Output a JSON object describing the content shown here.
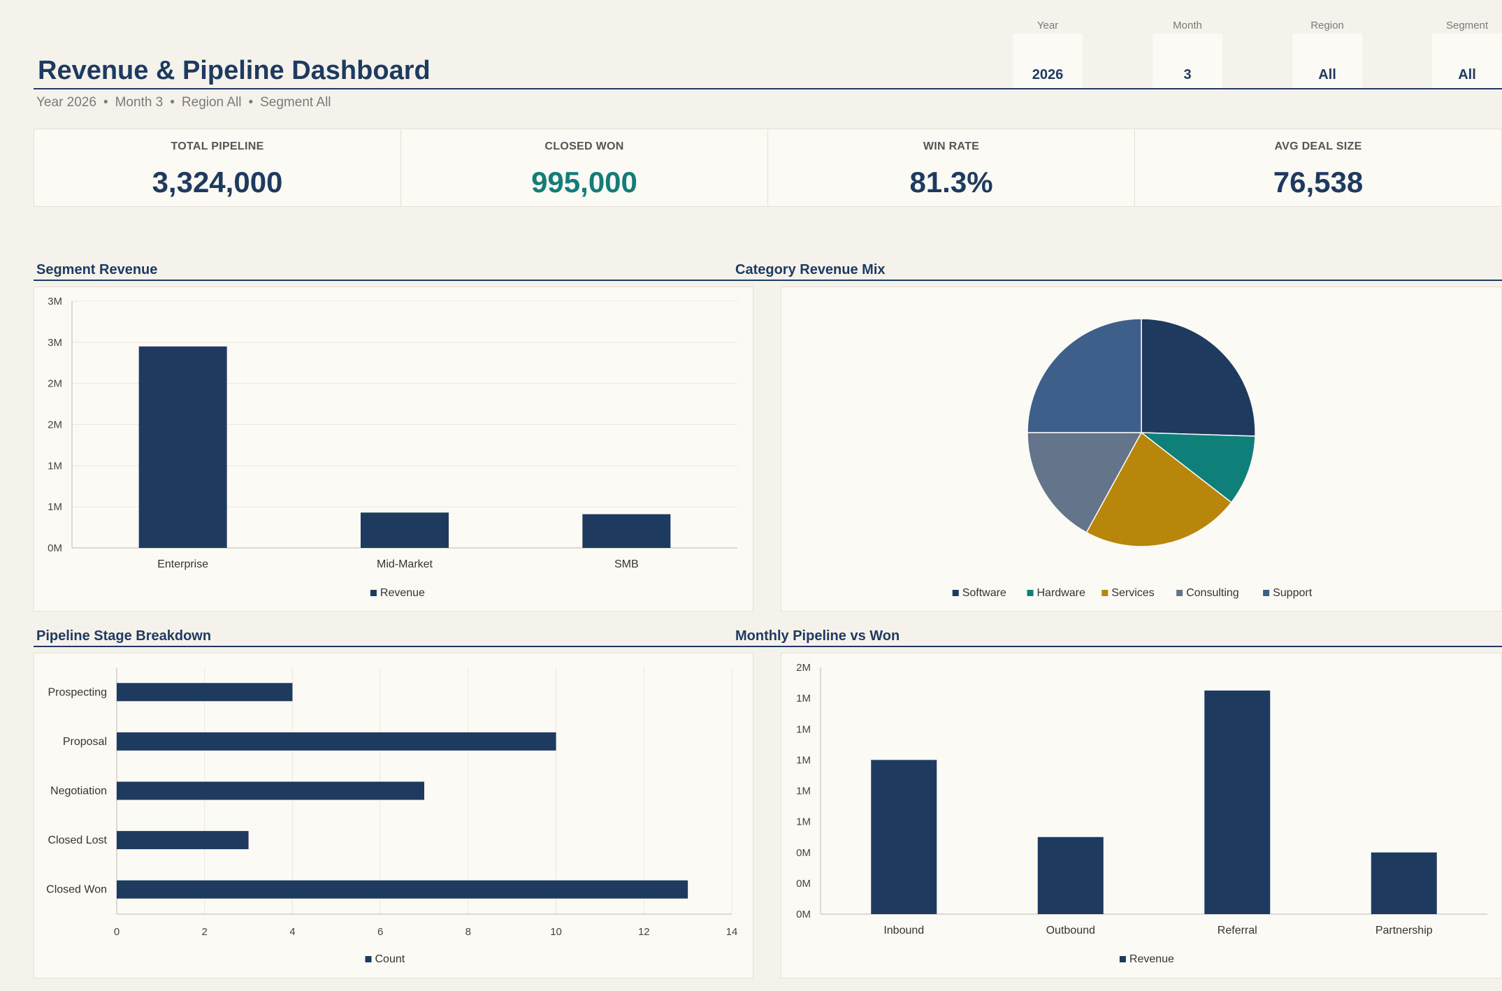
{
  "header": {
    "title": "Revenue & Pipeline Dashboard",
    "subtitle": [
      "Year 2026",
      "Month 3",
      "Region All",
      "Segment All"
    ],
    "separator": "•"
  },
  "filters": [
    {
      "label": "Year",
      "value": "2026"
    },
    {
      "label": "Month",
      "value": "3"
    },
    {
      "label": "Region",
      "value": "All"
    },
    {
      "label": "Segment",
      "value": "All"
    }
  ],
  "kpis": [
    {
      "label": "TOTAL PIPELINE",
      "value": "3,324,000",
      "color": "#1e3a5f"
    },
    {
      "label": "CLOSED WON",
      "value": "995,000",
      "color": "#147c78"
    },
    {
      "label": "WIN RATE",
      "value": "81.3%",
      "color": "#1e3a5f"
    },
    {
      "label": "AVG DEAL SIZE",
      "value": "76,538",
      "color": "#1e3a5f"
    }
  ],
  "sections": {
    "segment_revenue": "Segment Revenue",
    "category_mix": "Category Revenue Mix",
    "pipeline_stage": "Pipeline Stage Breakdown",
    "monthly": "Monthly Pipeline vs Won"
  },
  "chart_data": [
    {
      "id": "segment",
      "type": "bar",
      "categories": [
        "Enterprise",
        "Mid-Market",
        "SMB"
      ],
      "series": [
        {
          "name": "Revenue",
          "values": [
            2450000,
            430000,
            410000
          ],
          "color": "#1e3a5f"
        }
      ],
      "ylim": [
        0,
        3000000
      ],
      "yticks": [
        0,
        500000,
        1000000,
        1500000,
        2000000,
        2500000,
        3000000
      ],
      "ytick_labels": [
        "0M",
        "1M",
        "1M",
        "2M",
        "2M",
        "3M",
        "3M"
      ],
      "grid": true,
      "legend": "bottom"
    },
    {
      "id": "category",
      "type": "pie",
      "labels": [
        "Software",
        "Hardware",
        "Services",
        "Consulting",
        "Support"
      ],
      "values": [
        25.5,
        10,
        22.5,
        17,
        25
      ],
      "colors": [
        "#1e3a5f",
        "#0f7f7a",
        "#b8860b",
        "#64748b",
        "#3d5f8a"
      ],
      "legend": "bottom"
    },
    {
      "id": "stage",
      "type": "bar",
      "orientation": "horizontal",
      "categories": [
        "Prospecting",
        "Proposal",
        "Negotiation",
        "Closed Lost",
        "Closed Won"
      ],
      "series": [
        {
          "name": "Count",
          "values": [
            4,
            10,
            7,
            3,
            13
          ],
          "color": "#1e3a5f"
        }
      ],
      "xlim": [
        0,
        14
      ],
      "xticks": [
        0,
        2,
        4,
        6,
        8,
        10,
        12,
        14
      ],
      "grid": true,
      "legend": "bottom"
    },
    {
      "id": "monthly",
      "type": "bar",
      "categories": [
        "Inbound",
        "Outbound",
        "Referral",
        "Partnership"
      ],
      "series": [
        {
          "name": "Revenue",
          "values": [
            1000000,
            500000,
            1450000,
            400000
          ],
          "color": "#1e3a5f"
        }
      ],
      "ylim": [
        0,
        1600000
      ],
      "yticks": [
        0,
        200000,
        400000,
        600000,
        800000,
        1000000,
        1200000,
        1400000,
        1600000
      ],
      "ytick_labels": [
        "0M",
        "0M",
        "0M",
        "1M",
        "1M",
        "1M",
        "1M",
        "1M",
        "2M"
      ],
      "grid": false,
      "legend": "bottom"
    }
  ]
}
